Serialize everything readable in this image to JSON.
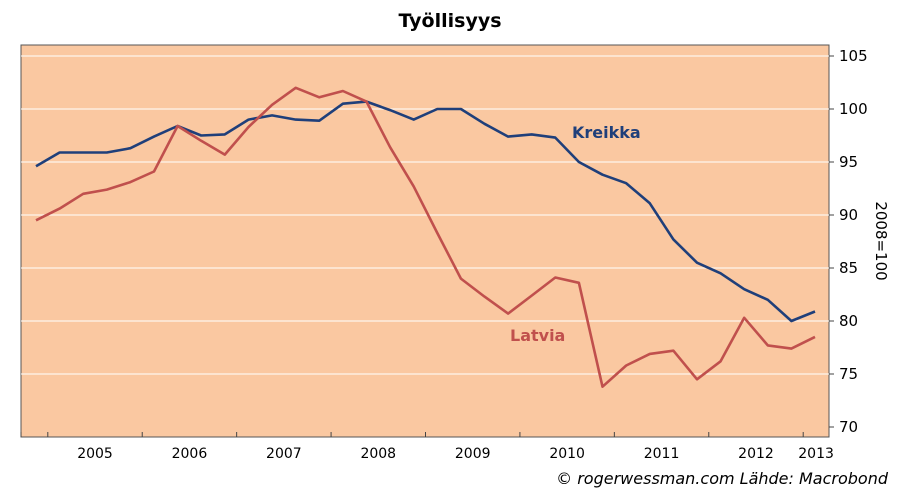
{
  "chart_data": {
    "type": "line",
    "title": "Työllisyys",
    "ylabel": "2008=100",
    "ylim": [
      70,
      105
    ],
    "yticks": [
      70,
      75,
      80,
      85,
      90,
      95,
      100,
      105
    ],
    "year_labels": [
      "2005",
      "2006",
      "2007",
      "2008",
      "2009",
      "2010",
      "2011",
      "2012",
      "2013"
    ],
    "x": [
      "2004Q4",
      "2005Q1",
      "2005Q2",
      "2005Q3",
      "2005Q4",
      "2006Q1",
      "2006Q2",
      "2006Q3",
      "2006Q4",
      "2007Q1",
      "2007Q2",
      "2007Q3",
      "2007Q4",
      "2008Q1",
      "2008Q2",
      "2008Q3",
      "2008Q4",
      "2009Q1",
      "2009Q2",
      "2009Q3",
      "2009Q4",
      "2010Q1",
      "2010Q2",
      "2010Q3",
      "2010Q4",
      "2011Q1",
      "2011Q2",
      "2011Q3",
      "2011Q4",
      "2012Q1",
      "2012Q2",
      "2012Q3",
      "2012Q4",
      "2013Q1"
    ],
    "series": [
      {
        "name": "Kreikka",
        "color": "#1f3f7a",
        "values": [
          94.6,
          95.9,
          95.9,
          95.9,
          96.3,
          97.4,
          98.4,
          97.5,
          97.6,
          99.0,
          99.4,
          99.0,
          98.9,
          100.5,
          100.7,
          99.9,
          99.0,
          100.0,
          100.0,
          98.6,
          97.4,
          97.6,
          97.3,
          95.0,
          93.8,
          93.0,
          91.1,
          87.7,
          85.5,
          84.5,
          83.0,
          82.0,
          80.0,
          80.9
        ]
      },
      {
        "name": "Latvia",
        "color": "#c0504d",
        "values": [
          89.5,
          90.6,
          92.0,
          92.4,
          93.1,
          94.1,
          98.4,
          97.0,
          95.7,
          98.3,
          100.4,
          102.0,
          101.1,
          101.7,
          100.7,
          96.4,
          92.7,
          88.3,
          84.0,
          82.3,
          80.7,
          82.4,
          84.1,
          83.6,
          73.8,
          75.8,
          76.9,
          77.2,
          74.5,
          76.2,
          80.3,
          77.7,
          77.4,
          78.5
        ]
      }
    ],
    "background_color": "#fac8a1",
    "grid": true
  },
  "credit": "© rogerwessman.com Lähde: Macrobond"
}
